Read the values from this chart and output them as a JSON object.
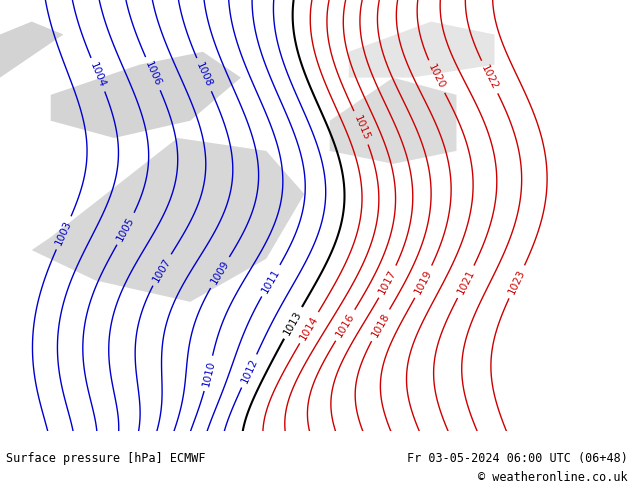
{
  "title_bottom_left": "Surface pressure [hPa] ECMWF",
  "title_bottom_right": "Fr 03-05-2024 06:00 UTC (06+48)",
  "copyright": "© weatheronline.co.uk",
  "bg_color": "#a8d878",
  "land_color": "#a8d878",
  "water_color": "#c8e8f8",
  "fig_width": 6.34,
  "fig_height": 4.9,
  "dpi": 100,
  "bottom_bar_color": "#d8d8d8",
  "bottom_text_color": "#000000",
  "contour_blue_color": "#0000cc",
  "contour_red_color": "#cc0000",
  "contour_black_color": "#000000",
  "font_size_labels": 7.5,
  "font_size_bottom": 8.5
}
